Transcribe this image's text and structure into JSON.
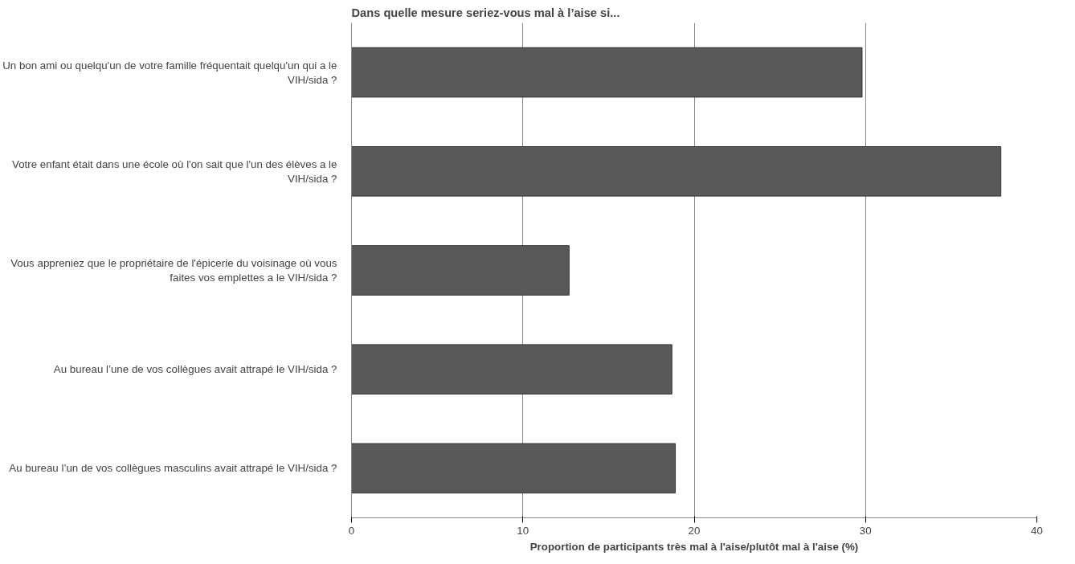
{
  "chart_data": {
    "type": "bar",
    "orientation": "horizontal",
    "title": "Dans quelle mesure seriez-vous mal à l’aise si...",
    "xlabel": "Proportion de participants très mal à l'aise/plutôt mal à l'aise (%)",
    "categories": [
      "Un bon ami ou quelqu'un de votre famille fréquentait quelqu'un qui a le\nVIH/sida ?",
      "Votre enfant était dans une école où l'on sait que l'un des élèves a le\nVIH/sida ?",
      "Vous appreniez que le propriétaire de l'épicerie du voisinage où vous\nfaites vos emplettes a le VIH/sida ?",
      "Au bureau l’une de vos collègues avait attrapé le VIH/sida ?",
      "Au bureau l’un de vos collègues masculins avait attrapé le VIH/sida ?"
    ],
    "values": [
      29.8,
      37.9,
      12.7,
      18.7,
      18.9
    ],
    "color": "#595959",
    "xlim": [
      0,
      40
    ],
    "xticks": [
      0,
      10,
      20,
      30,
      40
    ],
    "grid": "x"
  }
}
